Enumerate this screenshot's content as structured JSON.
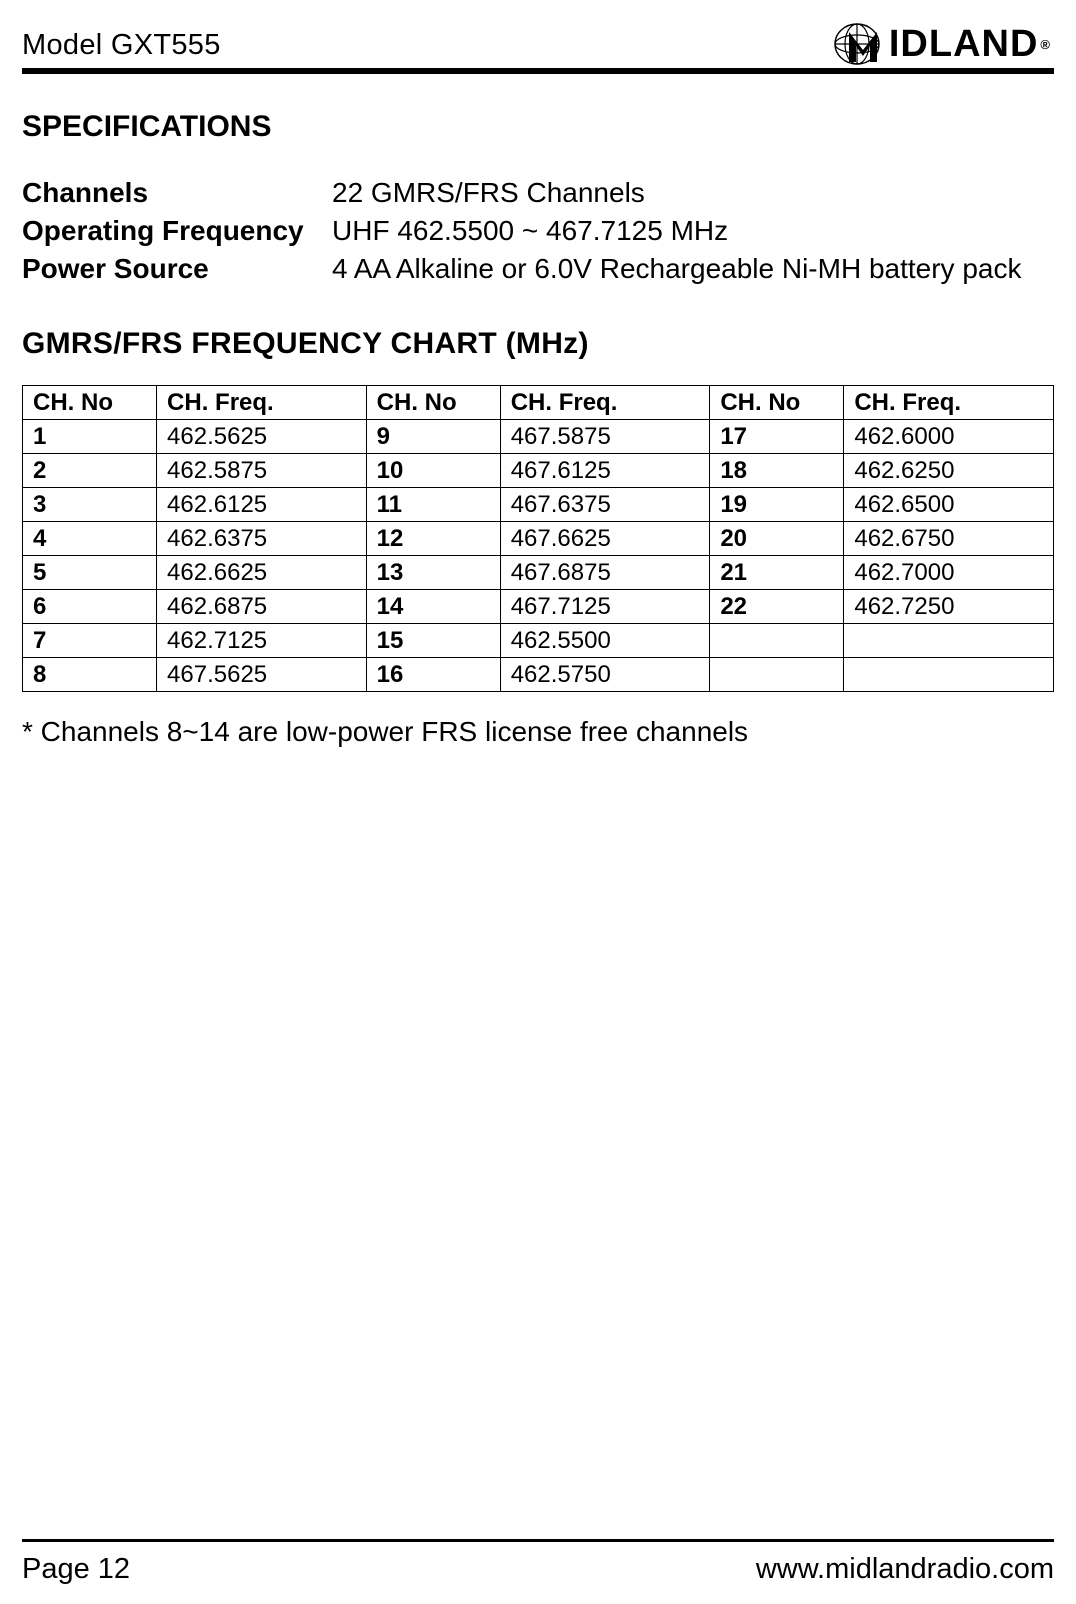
{
  "header": {
    "model": "Model GXT555",
    "brand_text": "IDLAND",
    "brand_reg": "®"
  },
  "sections": {
    "specs_title": "SPECIFICATIONS",
    "chart_title": "GMRS/FRS FREQUENCY CHART (MHz)"
  },
  "specs": [
    {
      "label": "Channels",
      "value": "22 GMRS/FRS Channels"
    },
    {
      "label": "Operating Frequency",
      "value": "UHF 462.5500 ~ 467.7125 MHz"
    },
    {
      "label": "Power Source",
      "value": "4 AA Alkaline or 6.0V Rechargeable Ni-MH battery pack"
    }
  ],
  "table": {
    "headers": [
      "CH.  No",
      "CH. Freq.",
      "CH.  No",
      "CH. Freq.",
      "CH.  No",
      "CH. Freq."
    ],
    "rows": [
      [
        "1",
        "462.5625",
        "9",
        "467.5875",
        "17",
        "462.6000"
      ],
      [
        "2",
        "462.5875",
        "10",
        "467.6125",
        "18",
        "462.6250"
      ],
      [
        "3",
        "462.6125",
        "11",
        "467.6375",
        "19",
        "462.6500"
      ],
      [
        "4",
        "462.6375",
        "12",
        "467.6625",
        "20",
        "462.6750"
      ],
      [
        "5",
        "462.6625",
        "13",
        "467.6875",
        "21",
        "462.7000"
      ],
      [
        "6",
        "462.6875",
        "14",
        "467.7125",
        "22",
        "462.7250"
      ],
      [
        "7",
        "462.7125",
        "15",
        "462.5500",
        "",
        ""
      ],
      [
        "8",
        "467.5625",
        "16",
        "462.5750",
        "",
        ""
      ]
    ]
  },
  "footnote": "* Channels 8~14 are low-power FRS license free channels",
  "footer": {
    "page": "Page 12",
    "url": "www.midlandradio.com"
  },
  "colors": {
    "text": "#000000",
    "background": "#ffffff",
    "rule": "#000000",
    "table_border": "#000000"
  },
  "typography": {
    "body_font": "Arial",
    "model_size_pt": 22,
    "section_title_size_pt": 22,
    "spec_size_pt": 21,
    "table_size_pt": 18,
    "footnote_size_pt": 21,
    "footer_size_pt": 22,
    "brand_size_pt": 28
  }
}
